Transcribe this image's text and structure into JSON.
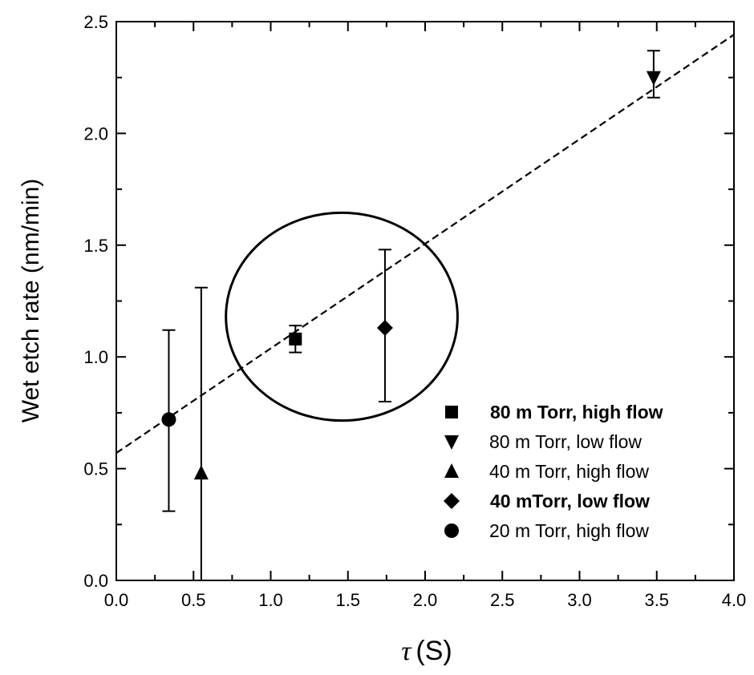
{
  "chart_data": {
    "type": "scatter",
    "title": "",
    "xlabel": {
      "symbol": "τ",
      "unit": "(S)"
    },
    "ylabel": "Wet etch rate (nm/min)",
    "xlim": [
      0.0,
      4.0
    ],
    "ylim": [
      0.0,
      2.5
    ],
    "x_ticks": [
      "0.0",
      "0.5",
      "1.0",
      "1.5",
      "2.0",
      "2.5",
      "3.0",
      "3.5",
      "4.0"
    ],
    "y_ticks": [
      "0.0",
      "0.5",
      "1.0",
      "1.5",
      "2.0",
      "2.5"
    ],
    "grid": false,
    "legend_position": "bottom-right",
    "series": [
      {
        "name": "80 m Torr, high flow",
        "marker": "square",
        "bold": true,
        "x": 1.16,
        "y": 1.08,
        "err_low": 1.02,
        "err_high": 1.14
      },
      {
        "name": "80 m Torr, low flow",
        "marker": "triangle-down",
        "bold": false,
        "x": 3.48,
        "y": 2.25,
        "err_low": 2.16,
        "err_high": 2.37
      },
      {
        "name": "40 m Torr, high flow",
        "marker": "triangle-up",
        "bold": false,
        "x": 0.55,
        "y": 0.48,
        "err_low": 0.0,
        "err_high": 1.31
      },
      {
        "name": "40 mTorr, low flow",
        "marker": "diamond",
        "bold": true,
        "x": 1.74,
        "y": 1.13,
        "err_low": 0.8,
        "err_high": 1.48
      },
      {
        "name": "20 m Torr, high flow",
        "marker": "circle",
        "bold": false,
        "x": 0.34,
        "y": 0.72,
        "err_low": 0.31,
        "err_high": 1.12
      }
    ],
    "fit_line": {
      "style": "dashed",
      "intercept": 0.57,
      "slope": 0.468
    },
    "annotation": {
      "shape": "ellipse",
      "cx": 1.46,
      "cy": 1.18,
      "rx": 0.75,
      "ry": 0.465
    }
  }
}
